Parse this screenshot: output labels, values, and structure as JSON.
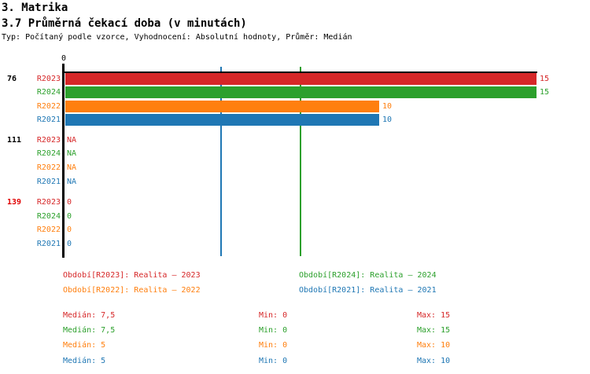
{
  "header": {
    "title": "3. Matrika",
    "subtitle": "3.7 Průměrná čekací doba (v minutách)",
    "meta": "Typ: Počítaný podle vzorce, Vyhodnocení: Absolutní hodnoty, Průměr: Medián"
  },
  "colors": {
    "red": "#d62728",
    "green": "#2ca02c",
    "orange": "#ff7f0e",
    "blue": "#1f77b4",
    "highlight": "#e00000",
    "axis": "#000000"
  },
  "chart_data": {
    "type": "bar",
    "orientation": "horizontal",
    "xlim": [
      0,
      15
    ],
    "x_tick_labels": [
      "0"
    ],
    "grid": false,
    "series": [
      "R2023",
      "R2024",
      "R2022",
      "R2021"
    ],
    "series_colors": [
      "#d62728",
      "#2ca02c",
      "#ff7f0e",
      "#1f77b4"
    ],
    "groups": [
      {
        "label": "76",
        "values": [
          15,
          15,
          10,
          10
        ],
        "value_labels": [
          "15",
          "15",
          "10",
          "10"
        ]
      },
      {
        "label": "111",
        "values": [
          null,
          null,
          null,
          null
        ],
        "value_labels": [
          "NA",
          "NA",
          "NA",
          "NA"
        ]
      },
      {
        "label": "139",
        "values": [
          0,
          0,
          0,
          0
        ],
        "value_labels": [
          "0",
          "0",
          "0",
          "0"
        ]
      }
    ],
    "median_lines": [
      {
        "value": 7.5,
        "color": "#2ca02c"
      },
      {
        "value": 5,
        "color": "#1f77b4"
      }
    ],
    "legend": [
      {
        "label": "Období[R2023]: Realita – 2023",
        "color": "#d62728"
      },
      {
        "label": "Období[R2024]: Realita – 2024",
        "color": "#2ca02c"
      },
      {
        "label": "Období[R2022]: Realita – 2022",
        "color": "#ff7f0e"
      },
      {
        "label": "Období[R2021]: Realita – 2021",
        "color": "#1f77b4"
      }
    ],
    "stats": [
      {
        "median": "Medián: 7,5",
        "min": "Min: 0",
        "max": "Max: 15",
        "color": "#d62728"
      },
      {
        "median": "Medián: 7,5",
        "min": "Min: 0",
        "max": "Max: 15",
        "color": "#2ca02c"
      },
      {
        "median": "Medián: 5",
        "min": "Min: 0",
        "max": "Max: 10",
        "color": "#ff7f0e"
      },
      {
        "median": "Medián: 5",
        "min": "Min: 0",
        "max": "Max: 10",
        "color": "#1f77b4"
      }
    ]
  }
}
